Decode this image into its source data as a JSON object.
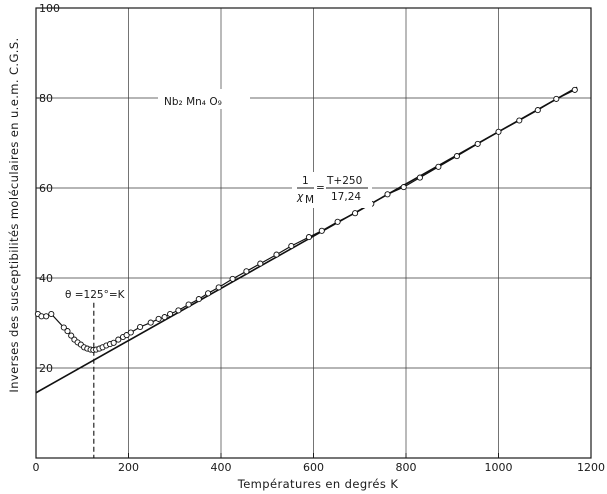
{
  "chart_data": {
    "type": "scatter",
    "title": "",
    "xlabel": "Températures  en degrés  K",
    "ylabel": "Inverses  des  susceptibilités   moléculaires  en u.e.m. C.G.S.",
    "xlim": [
      0,
      1200
    ],
    "ylim": [
      0,
      100
    ],
    "x_ticks": [
      "0",
      "200",
      "400",
      "600",
      "800",
      "1000",
      "1200"
    ],
    "y_ticks": [
      "20",
      "40",
      "60",
      "80",
      "100"
    ],
    "y_tick_values": [
      20,
      40,
      60,
      80,
      100
    ],
    "x_tick_values": [
      0,
      200,
      400,
      600,
      800,
      1000,
      1200
    ],
    "grid": true,
    "compound_label": "Nb₂ Mn₄ O₉",
    "equation": {
      "lhs_numerator": "1",
      "lhs_denominator": "χ",
      "lhs_subscript": "M",
      "rhs_numerator": "T+250",
      "rhs_denominator": "17,24"
    },
    "theta_label": "θ =125°=K",
    "theta_value": 125,
    "fit_line": {
      "slope": 0.058,
      "intercept": 14.5,
      "x_range": [
        0,
        1170
      ]
    },
    "series": [
      {
        "type": "scatter",
        "marker": "open-circle",
        "x": [
          4,
          12,
          22,
          33,
          60,
          68,
          76,
          83,
          90,
          97,
          104,
          111,
          118,
          124,
          130,
          137,
          144,
          152,
          160,
          168,
          178,
          188,
          196,
          205,
          225,
          248,
          265,
          278,
          290,
          308,
          330,
          352,
          372,
          395,
          425,
          455,
          485,
          520,
          552,
          590,
          618,
          652,
          690,
          725,
          760,
          795,
          830,
          870,
          910,
          955,
          1000,
          1045,
          1085,
          1125,
          1165
        ],
        "y": [
          32,
          31.5,
          31.5,
          32,
          29,
          28.2,
          27.2,
          26.3,
          25.7,
          25.2,
          24.6,
          24.3,
          24.1,
          24.0,
          24.1,
          24.3,
          24.6,
          25.0,
          25.3,
          25.6,
          26.3,
          26.9,
          27.3,
          27.9,
          29.1,
          30.1,
          30.9,
          31.3,
          32.0,
          32.8,
          34.1,
          35.3,
          36.6,
          37.9,
          39.8,
          41.5,
          43.2,
          45.2,
          47.1,
          49.1,
          50.5,
          52.5,
          54.4,
          56.5,
          58.6,
          60.2,
          62.3,
          64.7,
          67.1,
          69.8,
          72.5,
          75.0,
          77.3,
          79.8,
          81.8
        ]
      }
    ]
  }
}
